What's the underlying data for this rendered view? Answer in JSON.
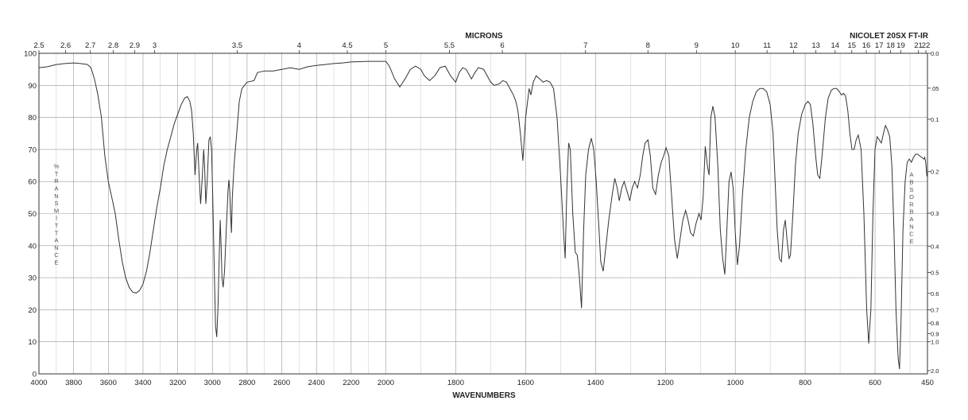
{
  "chart_data": {
    "type": "line",
    "title_top": "MICRONS",
    "instrument": "NICOLET 20SX FT-IR",
    "xlabel": "WAVENUMBERS",
    "ylabel_left": "%TRANSMITTANCE",
    "ylabel_right": "ABSORBANCE",
    "xlim": [
      4000,
      450
    ],
    "ylim": [
      0,
      100
    ],
    "grid": true,
    "bottom_ticks": [
      4000,
      3800,
      3600,
      3400,
      3200,
      3000,
      2800,
      2600,
      2400,
      2200,
      2000,
      1800,
      1600,
      1400,
      1200,
      1000,
      800,
      600,
      450
    ],
    "top_ticks": [
      "2.5",
      "2.6",
      "2.7",
      "2.8",
      "2.9",
      "3",
      "3.5",
      "4",
      "4.5",
      "5",
      "5.5",
      "6",
      "7",
      "8",
      "9",
      "10",
      "11",
      "12",
      "13",
      "14",
      "15",
      "16",
      "17",
      "18",
      "19",
      "21",
      "22"
    ],
    "left_ticks": [
      0,
      10,
      20,
      30,
      40,
      50,
      60,
      70,
      80,
      90,
      100
    ],
    "right_ticks": [
      "0.0",
      ".05",
      "0.1",
      "0.2",
      "0.3",
      "0.4",
      "0.5",
      "0.6",
      "0.7",
      "0.8",
      "0.9",
      "1.0",
      "2.0"
    ],
    "series": [
      {
        "color": "#333333",
        "points": [
          [
            4000,
            95.5
          ],
          [
            3950,
            95.8
          ],
          [
            3900,
            96.5
          ],
          [
            3850,
            96.8
          ],
          [
            3800,
            97
          ],
          [
            3760,
            96.8
          ],
          [
            3720,
            96.5
          ],
          [
            3700,
            95.5
          ],
          [
            3680,
            92
          ],
          [
            3660,
            87
          ],
          [
            3640,
            80
          ],
          [
            3620,
            68
          ],
          [
            3600,
            60
          ],
          [
            3580,
            55
          ],
          [
            3560,
            50
          ],
          [
            3540,
            42
          ],
          [
            3520,
            35
          ],
          [
            3500,
            30
          ],
          [
            3480,
            27
          ],
          [
            3460,
            25.5
          ],
          [
            3440,
            25.2
          ],
          [
            3420,
            26
          ],
          [
            3400,
            28
          ],
          [
            3380,
            32
          ],
          [
            3360,
            38
          ],
          [
            3340,
            45
          ],
          [
            3320,
            52
          ],
          [
            3300,
            58
          ],
          [
            3280,
            65
          ],
          [
            3260,
            70
          ],
          [
            3240,
            74
          ],
          [
            3220,
            78
          ],
          [
            3200,
            81
          ],
          [
            3180,
            84
          ],
          [
            3160,
            86
          ],
          [
            3145,
            86.5
          ],
          [
            3130,
            85
          ],
          [
            3120,
            82
          ],
          [
            3110,
            75
          ],
          [
            3100,
            62
          ],
          [
            3090,
            70
          ],
          [
            3085,
            72
          ],
          [
            3075,
            60
          ],
          [
            3068,
            53
          ],
          [
            3060,
            60
          ],
          [
            3050,
            70
          ],
          [
            3045,
            65
          ],
          [
            3038,
            53
          ],
          [
            3030,
            60
          ],
          [
            3020,
            73
          ],
          [
            3012,
            74
          ],
          [
            3005,
            70
          ],
          [
            2998,
            55
          ],
          [
            2990,
            35
          ],
          [
            2982,
            15
          ],
          [
            2975,
            11.5
          ],
          [
            2968,
            20
          ],
          [
            2960,
            38
          ],
          [
            2955,
            48
          ],
          [
            2950,
            40
          ],
          [
            2945,
            30
          ],
          [
            2938,
            27
          ],
          [
            2930,
            32
          ],
          [
            2920,
            45
          ],
          [
            2910,
            57
          ],
          [
            2905,
            60.5
          ],
          [
            2900,
            57
          ],
          [
            2895,
            50
          ],
          [
            2890,
            44
          ],
          [
            2885,
            55
          ],
          [
            2875,
            65
          ],
          [
            2860,
            75
          ],
          [
            2845,
            85
          ],
          [
            2830,
            89
          ],
          [
            2800,
            91
          ],
          [
            2760,
            91.5
          ],
          [
            2740,
            94
          ],
          [
            2700,
            94.5
          ],
          [
            2650,
            94.5
          ],
          [
            2600,
            95
          ],
          [
            2550,
            95.5
          ],
          [
            2500,
            95
          ],
          [
            2450,
            95.8
          ],
          [
            2400,
            96.2
          ],
          [
            2350,
            96.5
          ],
          [
            2300,
            96.8
          ],
          [
            2250,
            97
          ],
          [
            2200,
            97.3
          ],
          [
            2100,
            97.5
          ],
          [
            2000,
            97.5
          ],
          [
            1990,
            96
          ],
          [
            1975,
            92
          ],
          [
            1960,
            89.5
          ],
          [
            1945,
            92
          ],
          [
            1930,
            95
          ],
          [
            1915,
            96
          ],
          [
            1900,
            95
          ],
          [
            1890,
            93
          ],
          [
            1875,
            91.5
          ],
          [
            1860,
            93
          ],
          [
            1845,
            95.5
          ],
          [
            1830,
            96
          ],
          [
            1815,
            93
          ],
          [
            1800,
            91
          ],
          [
            1790,
            94
          ],
          [
            1780,
            95.5
          ],
          [
            1770,
            95
          ],
          [
            1755,
            92
          ],
          [
            1745,
            94
          ],
          [
            1735,
            95.5
          ],
          [
            1720,
            95
          ],
          [
            1710,
            93
          ],
          [
            1700,
            91
          ],
          [
            1690,
            90
          ],
          [
            1675,
            90.5
          ],
          [
            1665,
            91.5
          ],
          [
            1655,
            91
          ],
          [
            1645,
            89
          ],
          [
            1635,
            87
          ],
          [
            1628,
            85
          ],
          [
            1622,
            82
          ],
          [
            1615,
            75
          ],
          [
            1608,
            66.5
          ],
          [
            1600,
            80
          ],
          [
            1590,
            89
          ],
          [
            1585,
            87
          ],
          [
            1578,
            91
          ],
          [
            1570,
            93
          ],
          [
            1560,
            92
          ],
          [
            1550,
            91
          ],
          [
            1540,
            91.5
          ],
          [
            1530,
            91
          ],
          [
            1520,
            89
          ],
          [
            1510,
            80
          ],
          [
            1500,
            62
          ],
          [
            1492,
            45
          ],
          [
            1487,
            36
          ],
          [
            1482,
            58
          ],
          [
            1477,
            72
          ],
          [
            1472,
            70
          ],
          [
            1465,
            50
          ],
          [
            1458,
            38
          ],
          [
            1452,
            37
          ],
          [
            1446,
            30
          ],
          [
            1440,
            20.5
          ],
          [
            1434,
            45
          ],
          [
            1428,
            62
          ],
          [
            1420,
            70
          ],
          [
            1412,
            73.5
          ],
          [
            1405,
            70
          ],
          [
            1398,
            60
          ],
          [
            1390,
            45
          ],
          [
            1385,
            35
          ],
          [
            1378,
            32
          ],
          [
            1370,
            40
          ],
          [
            1362,
            48
          ],
          [
            1352,
            56
          ],
          [
            1345,
            61
          ],
          [
            1338,
            58
          ],
          [
            1332,
            54
          ],
          [
            1325,
            58
          ],
          [
            1318,
            60
          ],
          [
            1310,
            57
          ],
          [
            1302,
            54
          ],
          [
            1295,
            58
          ],
          [
            1288,
            60
          ],
          [
            1280,
            58
          ],
          [
            1272,
            62
          ],
          [
            1265,
            68
          ],
          [
            1258,
            72
          ],
          [
            1250,
            73
          ],
          [
            1243,
            68
          ],
          [
            1236,
            58
          ],
          [
            1228,
            56
          ],
          [
            1220,
            62
          ],
          [
            1212,
            66
          ],
          [
            1205,
            68
          ],
          [
            1198,
            70.5
          ],
          [
            1190,
            68
          ],
          [
            1182,
            55
          ],
          [
            1174,
            42
          ],
          [
            1166,
            36
          ],
          [
            1158,
            42
          ],
          [
            1150,
            48
          ],
          [
            1142,
            51
          ],
          [
            1135,
            48
          ],
          [
            1128,
            44
          ],
          [
            1120,
            43
          ],
          [
            1112,
            47
          ],
          [
            1104,
            50
          ],
          [
            1098,
            48
          ],
          [
            1092,
            55
          ],
          [
            1086,
            71
          ],
          [
            1080,
            65
          ],
          [
            1075,
            62
          ],
          [
            1070,
            80
          ],
          [
            1064,
            83.5
          ],
          [
            1058,
            80
          ],
          [
            1050,
            65
          ],
          [
            1043,
            45
          ],
          [
            1036,
            36
          ],
          [
            1030,
            31
          ],
          [
            1024,
            45
          ],
          [
            1018,
            60
          ],
          [
            1012,
            63
          ],
          [
            1006,
            58
          ],
          [
            1000,
            44
          ],
          [
            994,
            34
          ],
          [
            988,
            40
          ],
          [
            980,
            55
          ],
          [
            970,
            70
          ],
          [
            960,
            80
          ],
          [
            950,
            85
          ],
          [
            940,
            88
          ],
          [
            930,
            89
          ],
          [
            920,
            89
          ],
          [
            910,
            88
          ],
          [
            900,
            84
          ],
          [
            892,
            75
          ],
          [
            886,
            60
          ],
          [
            880,
            45
          ],
          [
            874,
            36
          ],
          [
            868,
            35
          ],
          [
            862,
            45
          ],
          [
            857,
            48
          ],
          [
            852,
            42
          ],
          [
            846,
            36
          ],
          [
            842,
            37
          ],
          [
            835,
            50
          ],
          [
            828,
            65
          ],
          [
            820,
            75
          ],
          [
            810,
            81
          ],
          [
            800,
            84
          ],
          [
            792,
            85
          ],
          [
            785,
            84
          ],
          [
            778,
            78
          ],
          [
            770,
            68
          ],
          [
            764,
            62
          ],
          [
            758,
            61
          ],
          [
            750,
            70
          ],
          [
            742,
            80
          ],
          [
            734,
            86
          ],
          [
            725,
            88.5
          ],
          [
            718,
            89
          ],
          [
            710,
            89
          ],
          [
            702,
            88
          ],
          [
            696,
            87
          ],
          [
            690,
            87.5
          ],
          [
            684,
            86.5
          ],
          [
            678,
            82
          ],
          [
            672,
            75
          ],
          [
            666,
            70
          ],
          [
            660,
            70
          ],
          [
            654,
            73
          ],
          [
            648,
            74.5
          ],
          [
            640,
            70
          ],
          [
            632,
            50
          ],
          [
            624,
            20
          ],
          [
            618,
            9.5
          ],
          [
            612,
            20
          ],
          [
            606,
            50
          ],
          [
            600,
            70
          ],
          [
            594,
            74
          ],
          [
            588,
            73
          ],
          [
            582,
            72
          ],
          [
            576,
            75
          ],
          [
            570,
            77.5
          ],
          [
            564,
            76
          ],
          [
            558,
            74
          ],
          [
            552,
            65
          ],
          [
            546,
            45
          ],
          [
            540,
            20
          ],
          [
            534,
            5
          ],
          [
            530,
            1.5
          ],
          [
            526,
            15
          ],
          [
            520,
            45
          ],
          [
            514,
            60
          ],
          [
            508,
            66
          ],
          [
            502,
            67
          ],
          [
            496,
            66
          ],
          [
            490,
            67.5
          ],
          [
            484,
            68.5
          ],
          [
            478,
            68.5
          ],
          [
            472,
            68
          ],
          [
            466,
            67.5
          ],
          [
            460,
            67
          ],
          [
            458,
            67.5
          ],
          [
            455,
            66
          ],
          [
            452,
            62
          ],
          [
            450,
            61.5
          ]
        ]
      }
    ]
  }
}
